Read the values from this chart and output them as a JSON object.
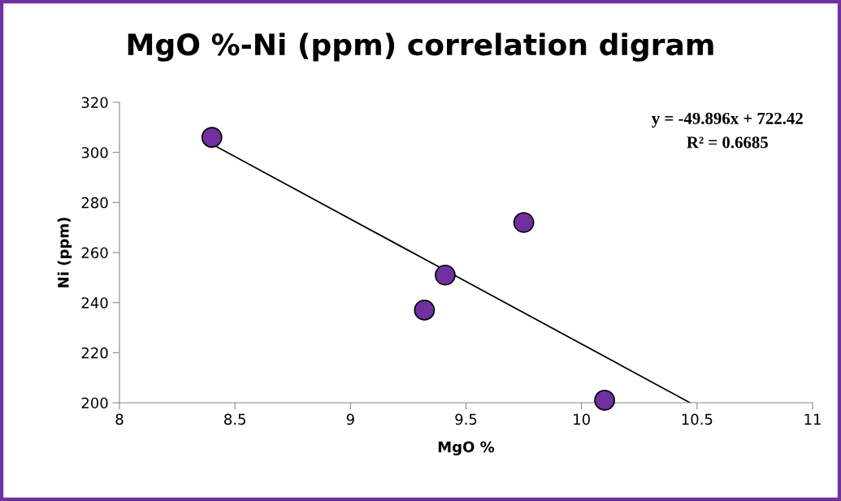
{
  "chart_data": {
    "type": "scatter",
    "title": "MgO %-Ni (ppm) correlation digram",
    "xlabel": "MgO %",
    "ylabel": "Ni (ppm)",
    "xlim": [
      8,
      11
    ],
    "xticks": [
      8,
      8.5,
      9,
      9.5,
      10,
      10.5,
      11
    ],
    "ylim": [
      200,
      320
    ],
    "yticks": [
      200,
      220,
      240,
      260,
      280,
      300,
      320
    ],
    "grid": false,
    "legend": false,
    "series": [
      {
        "marker": "circle",
        "color": "#7030a0",
        "x": [
          8.4,
          9.75,
          9.41,
          9.32,
          10.1
        ],
        "values": [
          306,
          272,
          251,
          237,
          201
        ]
      },
      {
        "type": "line",
        "color": "#000000",
        "x": [
          8.4,
          10.47
        ],
        "values": [
          303.3,
          200.0
        ]
      }
    ],
    "annotations": [
      "y = -49.896x + 722.42",
      "R² = 0.6685"
    ]
  }
}
